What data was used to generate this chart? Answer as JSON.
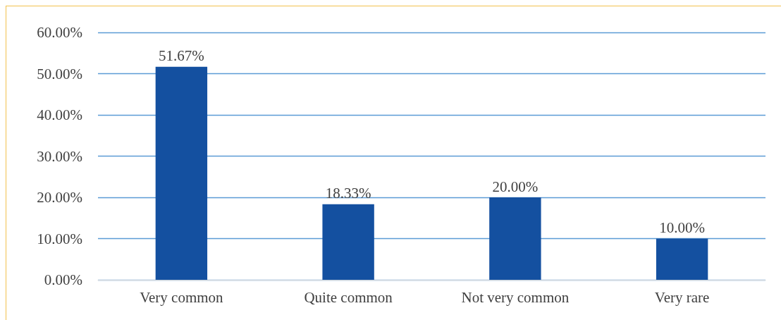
{
  "chart_data": {
    "type": "bar",
    "categories": [
      "Very common",
      "Quite common",
      "Not very common",
      "Very rare"
    ],
    "values": [
      51.67,
      18.33,
      20.0,
      10.0
    ],
    "value_labels": [
      "51.67%",
      "18.33%",
      "20.00%",
      "10.00%"
    ],
    "color": "#1450a0",
    "ylim": [
      0,
      60
    ],
    "yticks": [
      {
        "value": 0,
        "label": "0.00%"
      },
      {
        "value": 10,
        "label": "10.00%"
      },
      {
        "value": 20,
        "label": "20.00%"
      },
      {
        "value": 30,
        "label": "30.00%"
      },
      {
        "value": 40,
        "label": "40.00%"
      },
      {
        "value": 50,
        "label": "50.00%"
      },
      {
        "value": 60,
        "label": "60.00%"
      }
    ],
    "grid": "y"
  }
}
